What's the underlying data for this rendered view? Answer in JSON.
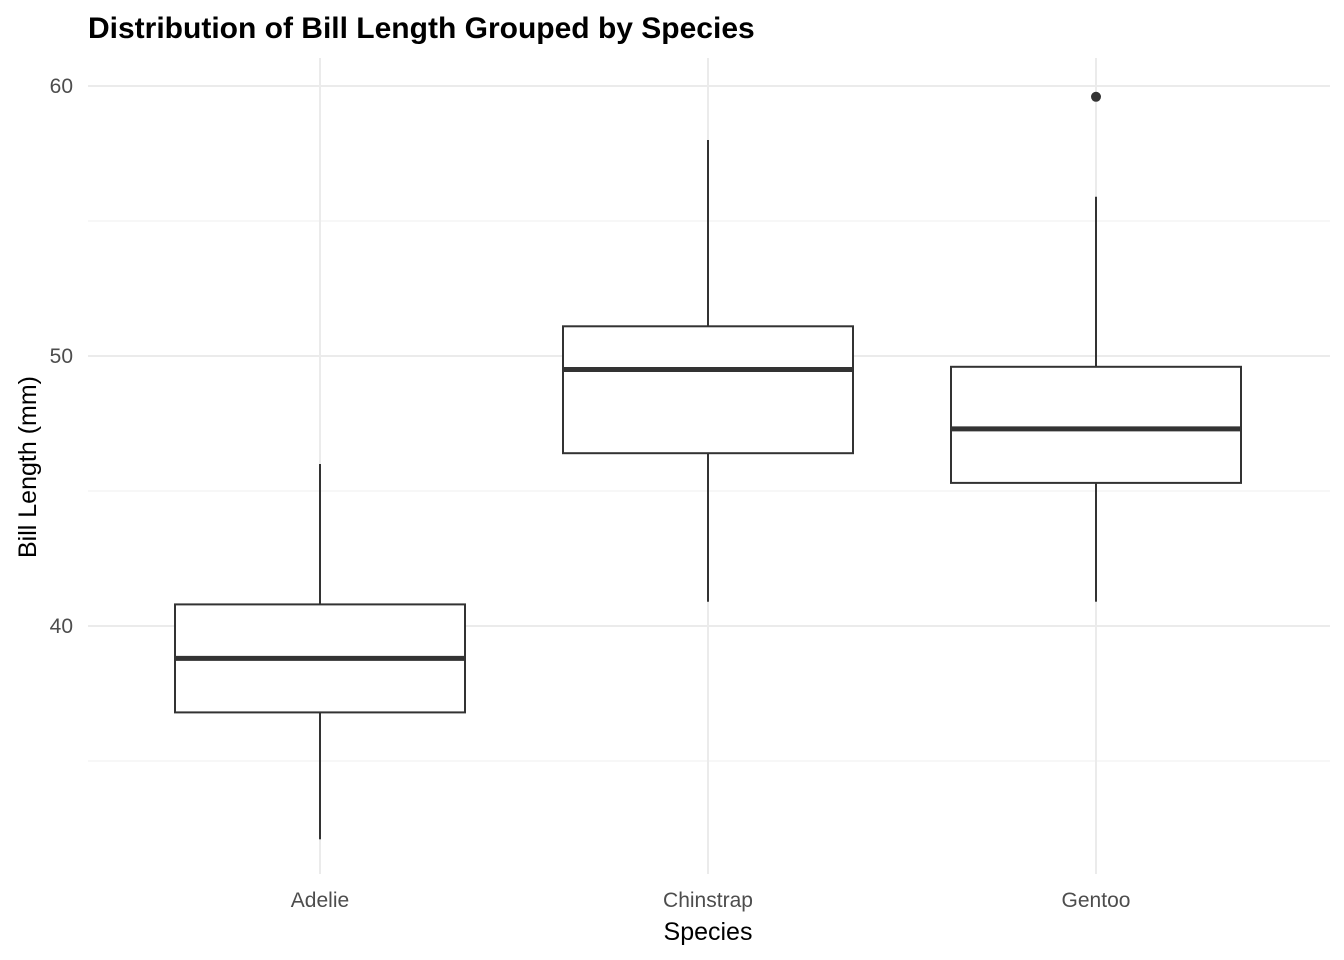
{
  "chart_data": {
    "type": "boxplot",
    "title": "Distribution of Bill Length Grouped by Species",
    "xlabel": "Species",
    "ylabel": "Bill Length (mm)",
    "categories": [
      "Adelie",
      "Chinstrap",
      "Gentoo"
    ],
    "ylim": [
      32.1,
      61.0
    ],
    "y_ticks": [
      40,
      50,
      60
    ],
    "y_tick_labels": [
      "40",
      "50",
      "60"
    ],
    "y_minor_ticks": [
      35,
      45,
      55
    ],
    "grid": true,
    "legend": "none",
    "boxes": [
      {
        "category": "Adelie",
        "min": 32.1,
        "q1": 36.8,
        "median": 38.8,
        "q3": 40.8,
        "max": 46.0,
        "outliers": []
      },
      {
        "category": "Chinstrap",
        "min": 40.9,
        "q1": 46.4,
        "median": 49.5,
        "q3": 51.1,
        "max": 58.0,
        "outliers": []
      },
      {
        "category": "Gentoo",
        "min": 40.9,
        "q1": 45.3,
        "median": 47.3,
        "q3": 49.6,
        "max": 55.9,
        "outliers": [
          59.6
        ]
      }
    ],
    "colors": {
      "box_line": "#333333",
      "box_fill": "#ffffff",
      "grid_major": "#ebebeb",
      "grid_minor": "#f2f2f2",
      "tick_text": "#4d4d4d",
      "title_text": "#000000"
    }
  }
}
